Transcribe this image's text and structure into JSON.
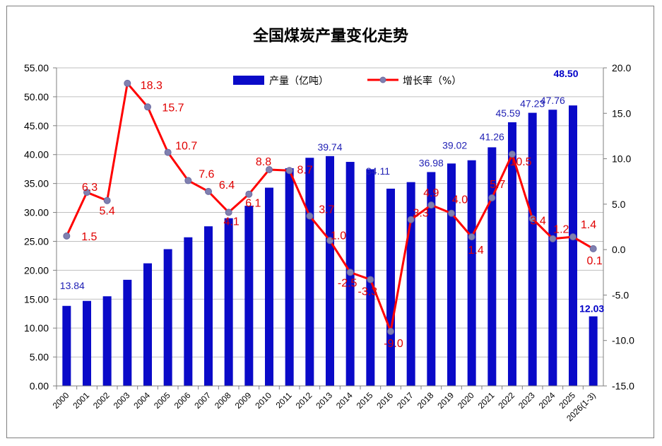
{
  "chart_data": {
    "type": "bar+line",
    "title": "全国煤炭产量变化走势",
    "categories": [
      "2000",
      "2001",
      "2002",
      "2003",
      "2004",
      "2005",
      "2006",
      "2007",
      "2008",
      "2009",
      "2010",
      "2011",
      "2012",
      "2013",
      "2014",
      "2015",
      "2016",
      "2017",
      "2018",
      "2019",
      "2020",
      "2021",
      "2022",
      "2023",
      "2024",
      "2025",
      "2026(1-3)"
    ],
    "series": [
      {
        "name": "产量（亿吨）",
        "type": "bar",
        "axis": "left",
        "color": "#0a0ac8",
        "values": [
          13.84,
          14.7,
          15.5,
          18.35,
          21.2,
          23.65,
          25.7,
          27.6,
          29.0,
          31.15,
          34.28,
          37.64,
          39.45,
          39.74,
          38.74,
          37.47,
          34.11,
          35.24,
          36.98,
          38.46,
          39.02,
          41.26,
          45.59,
          47.23,
          47.76,
          48.5,
          12.03
        ],
        "labels": [
          {
            "index": 0,
            "text": "13.84"
          },
          {
            "index": 13,
            "text": "39.74"
          },
          {
            "index": 16,
            "text": "34.11"
          },
          {
            "index": 18,
            "text": "36.98"
          },
          {
            "index": 20,
            "text": "39.02"
          },
          {
            "index": 21,
            "text": "41.26"
          },
          {
            "index": 22,
            "text": "45.59"
          },
          {
            "index": 23,
            "text": "47.23"
          },
          {
            "index": 24,
            "text": "47.76"
          },
          {
            "index": 25,
            "text": "48.50",
            "bold": true
          },
          {
            "index": 26,
            "text": "12.03",
            "bold": true
          }
        ]
      },
      {
        "name": "增长率（%）",
        "type": "line",
        "axis": "right",
        "color": "#ff0000",
        "marker_color": "#8080b0",
        "values": [
          1.5,
          6.3,
          5.4,
          18.3,
          15.7,
          10.7,
          7.6,
          6.4,
          4.1,
          6.1,
          8.8,
          8.7,
          3.7,
          1.0,
          -2.5,
          -3.3,
          -9.0,
          3.3,
          4.9,
          4.0,
          1.4,
          5.7,
          10.5,
          3.4,
          1.2,
          1.4,
          0.1
        ],
        "labels": [
          "1.5",
          "6.3",
          "5.4",
          "18.3",
          "15.7",
          "10.7",
          "7.6",
          "6.4",
          "4.1",
          "6.1",
          "8.8",
          "8.7",
          "3.7",
          "1.0",
          "-2.5",
          "-3.3",
          "-9.0",
          "3.3",
          "4.9",
          "4.0",
          "1.4",
          "5.7",
          "10.5",
          "3.4",
          "1.2",
          "1.4",
          "0.1"
        ]
      }
    ],
    "y_left": {
      "min": 0,
      "max": 55,
      "step": 5,
      "tick_labels": [
        "0.00",
        "5.00",
        "10.00",
        "15.00",
        "20.00",
        "25.00",
        "30.00",
        "35.00",
        "40.00",
        "45.00",
        "50.00",
        "55.00"
      ]
    },
    "y_right": {
      "min": -15,
      "max": 20,
      "step": 5,
      "tick_labels": [
        "-15.0",
        "-10.0",
        "-5.0",
        "0.0",
        "5.0",
        "10.0",
        "15.0",
        "20.0"
      ]
    },
    "grid": true,
    "legend": {
      "position": "top-center"
    }
  }
}
